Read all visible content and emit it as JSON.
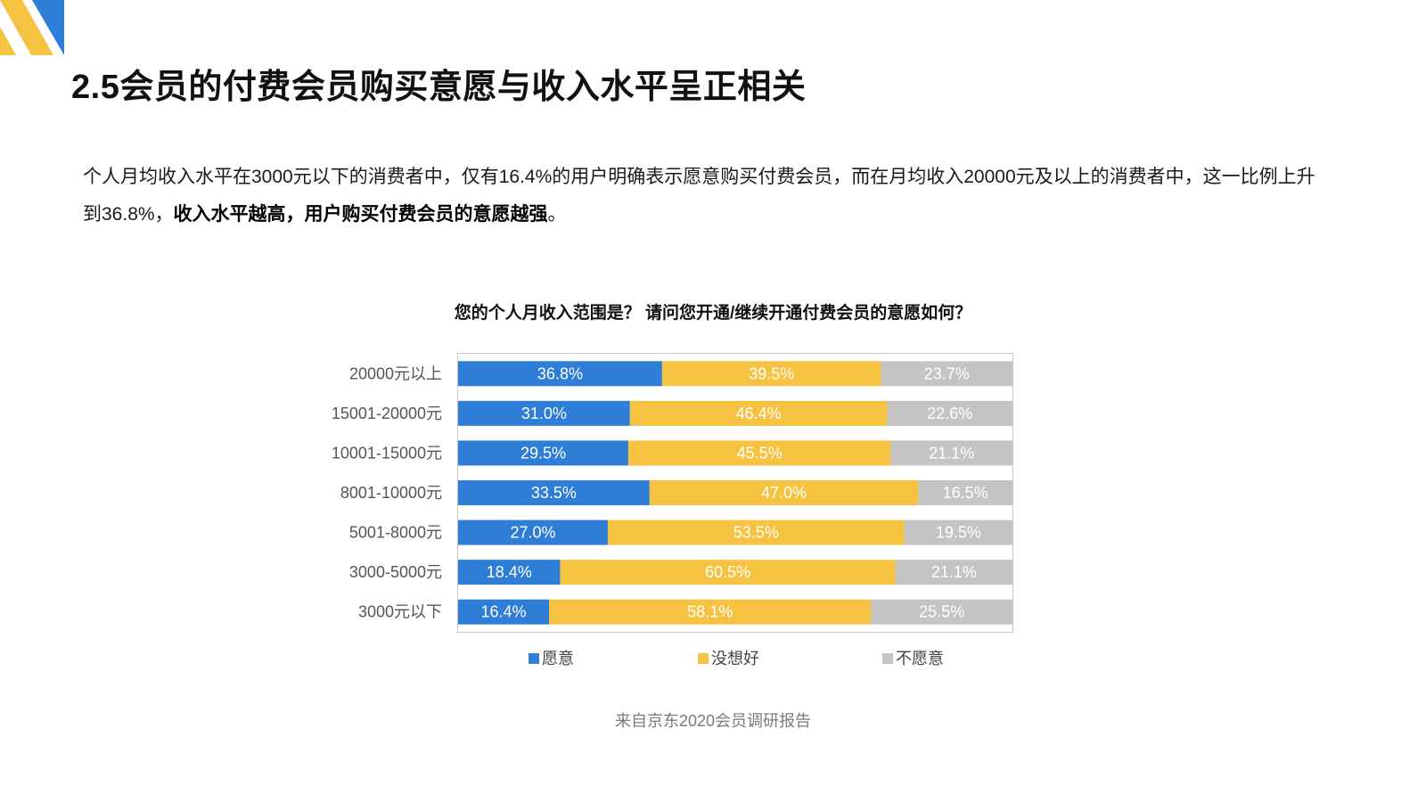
{
  "page": {
    "title": "2.5会员的付费会员购买意愿与收入水平呈正相关",
    "description_plain": "个人月均收入水平在3000元以下的消费者中，仅有16.4%的用户明确表示愿意购买付费会员，而在月均收入20000元及以上的消费者中，这一比例上升到36.8%，",
    "description_bold": "收入水平越高，用户购买付费会员的意愿越强",
    "description_end": "。",
    "source": "来自京东2020会员调研报告"
  },
  "colors": {
    "deco_yellow": "#F5C242",
    "deco_blue": "#2E7DD7"
  },
  "chart_data": {
    "type": "bar",
    "orientation": "horizontal",
    "stacked": true,
    "normalized": true,
    "title": "您的个人月收入范围是？ 请问您开通/继续开通付费会员的意愿如何？",
    "categories": [
      "20000元以上",
      "15001-20000元",
      "10001-15000元",
      "8001-10000元",
      "5001-8000元",
      "3000-5000元",
      "3000元以下"
    ],
    "series": [
      {
        "name": "愿意",
        "color": "#2E7DD7",
        "values": [
          36.8,
          31.0,
          29.5,
          33.5,
          27.0,
          18.4,
          16.4
        ],
        "labels": [
          "36.8%",
          "31.0%",
          "29.5%",
          "33.5%",
          "27.0%",
          "18.4%",
          "16.4%"
        ]
      },
      {
        "name": "没想好",
        "color": "#F5C242",
        "values": [
          39.5,
          46.4,
          45.5,
          47.0,
          53.5,
          60.5,
          58.1
        ],
        "labels": [
          "39.5%",
          "46.4%",
          "45.5%",
          "47.0%",
          "53.5%",
          "60.5%",
          "58.1%"
        ]
      },
      {
        "name": "不愿意",
        "color": "#C4C4C4",
        "values": [
          23.7,
          22.6,
          21.1,
          16.5,
          19.5,
          21.1,
          25.5
        ],
        "labels": [
          "23.7%",
          "22.6%",
          "21.1%",
          "16.5%",
          "19.5%",
          "21.1%",
          "25.5%"
        ]
      }
    ],
    "legend_position": "bottom",
    "grid": false
  }
}
